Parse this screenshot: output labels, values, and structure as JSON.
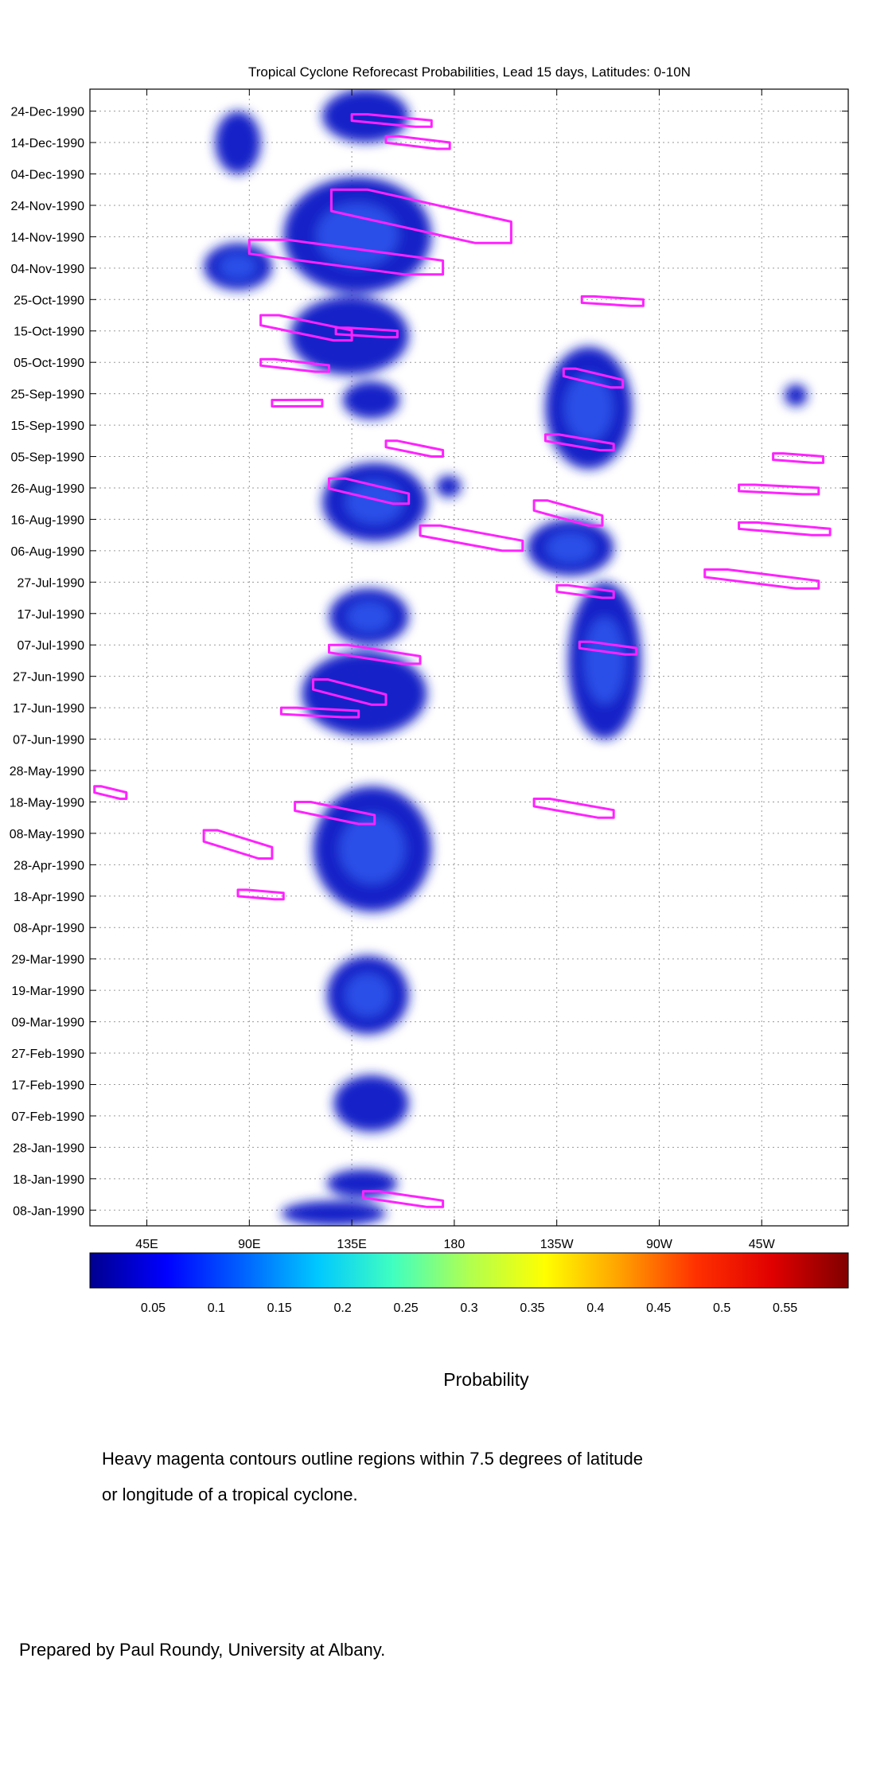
{
  "colors": {
    "field": "#1820c8",
    "field_light": "#2f5cf0",
    "contour": "#ff22ff",
    "grid": "#9a9a9a"
  },
  "colorbar": {
    "stops": [
      "#00008f",
      "#0000ff",
      "#0060ff",
      "#00c8ff",
      "#40ffc0",
      "#b0ff50",
      "#ffff00",
      "#ffa000",
      "#ff3000",
      "#e00000",
      "#800000"
    ],
    "ticks": [
      "0.05",
      "0.1",
      "0.15",
      "0.2",
      "0.25",
      "0.3",
      "0.35",
      "0.4",
      "0.45",
      "0.5",
      "0.55"
    ],
    "range": [
      0,
      0.6
    ],
    "label": "Probability"
  },
  "note_lines": [
    "Heavy magenta contours outline regions within 7.5 degrees of latitude",
    "or longitude of a tropical cyclone."
  ],
  "credit": "Prepared by Paul Roundy, University at Albany.",
  "chart_data": {
    "type": "heatmap",
    "title": "Tropical Cyclone Reforecast Probabilities, Lead 15 days, Latitudes: 0-10N",
    "xlabel": "",
    "ylabel": "",
    "x_ticks": [
      {
        "label": "45E",
        "lon": 45
      },
      {
        "label": "90E",
        "lon": 90
      },
      {
        "label": "135E",
        "lon": 135
      },
      {
        "label": "180",
        "lon": 180
      },
      {
        "label": "135W",
        "lon": 225
      },
      {
        "label": "90W",
        "lon": 270
      },
      {
        "label": "45W",
        "lon": 315
      }
    ],
    "xlim": [
      20,
      353
    ],
    "y_ticks": [
      "08-Jan-1990",
      "18-Jan-1990",
      "28-Jan-1990",
      "07-Feb-1990",
      "17-Feb-1990",
      "27-Feb-1990",
      "09-Mar-1990",
      "19-Mar-1990",
      "29-Mar-1990",
      "08-Apr-1990",
      "18-Apr-1990",
      "28-Apr-1990",
      "08-May-1990",
      "18-May-1990",
      "28-May-1990",
      "07-Jun-1990",
      "17-Jun-1990",
      "27-Jun-1990",
      "07-Jul-1990",
      "17-Jul-1990",
      "27-Jul-1990",
      "06-Aug-1990",
      "16-Aug-1990",
      "26-Aug-1990",
      "05-Sep-1990",
      "15-Sep-1990",
      "25-Sep-1990",
      "05-Oct-1990",
      "15-Oct-1990",
      "25-Oct-1990",
      "04-Nov-1990",
      "14-Nov-1990",
      "24-Nov-1990",
      "04-Dec-1990",
      "14-Dec-1990",
      "24-Dec-1990"
    ],
    "ylim": [
      "03-Jan-1990",
      "31-Dec-1990"
    ],
    "grid": true,
    "regions": [
      {
        "lon": [
          104,
          150
        ],
        "date": [
          "03-Jan-1990",
          "11-Jan-1990"
        ],
        "p": 0.05
      },
      {
        "lon": [
          124,
          155
        ],
        "date": [
          "12-Jan-1990",
          "21-Jan-1990"
        ],
        "p": 0.07
      },
      {
        "lon": [
          127,
          160
        ],
        "date": [
          "02-Feb-1990",
          "20-Feb-1990"
        ],
        "p": 0.09
      },
      {
        "lon": [
          124,
          160
        ],
        "date": [
          "05-Mar-1990",
          "30-Mar-1990"
        ],
        "p": 0.12
      },
      {
        "lon": [
          118,
          170
        ],
        "date": [
          "13-Apr-1990",
          "23-May-1990"
        ],
        "p": 0.13
      },
      {
        "lon": [
          113,
          168
        ],
        "date": [
          "08-Jun-1990",
          "05-Jul-1990"
        ],
        "p": 0.09
      },
      {
        "lon": [
          125,
          160
        ],
        "date": [
          "07-Jul-1990",
          "25-Jul-1990"
        ],
        "p": 0.1
      },
      {
        "lon": [
          122,
          168
        ],
        "date": [
          "09-Aug-1990",
          "03-Sep-1990"
        ],
        "p": 0.1
      },
      {
        "lon": [
          131,
          156
        ],
        "date": [
          "17-Sep-1990",
          "29-Sep-1990"
        ],
        "p": 0.06
      },
      {
        "lon": [
          108,
          160
        ],
        "date": [
          "01-Oct-1990",
          "26-Oct-1990"
        ],
        "p": 0.09
      },
      {
        "lon": [
          105,
          170
        ],
        "date": [
          "27-Oct-1990",
          "03-Dec-1990"
        ],
        "p": 0.13
      },
      {
        "lon": [
          122,
          160
        ],
        "date": [
          "14-Dec-1990",
          "31-Dec-1990"
        ],
        "p": 0.09
      },
      {
        "lon": [
          70,
          100
        ],
        "date": [
          "28-Oct-1990",
          "12-Nov-1990"
        ],
        "p": 0.12
      },
      {
        "lon": [
          75,
          95
        ],
        "date": [
          "04-Dec-1990",
          "24-Dec-1990"
        ],
        "p": 0.07
      },
      {
        "lon": [
          212,
          250
        ],
        "date": [
          "29-Jul-1990",
          "16-Aug-1990"
        ],
        "p": 0.12
      },
      {
        "lon": [
          230,
          262
        ],
        "date": [
          "07-Jun-1990",
          "27-Jul-1990"
        ],
        "p": 0.12
      },
      {
        "lon": [
          220,
          258
        ],
        "date": [
          "01-Sep-1990",
          "10-Oct-1990"
        ],
        "p": 0.1
      },
      {
        "lon": [
          172,
          183
        ],
        "date": [
          "23-Aug-1990",
          "30-Aug-1990"
        ],
        "p": 0.08
      },
      {
        "lon": [
          325,
          335
        ],
        "date": [
          "21-Sep-1990",
          "28-Sep-1990"
        ],
        "p": 0.06
      }
    ],
    "contours": [
      {
        "lon": [
          140,
          175
        ],
        "date": [
          "09-Jan-1990",
          "14-Jan-1990"
        ]
      },
      {
        "lon": [
          85,
          105
        ],
        "date": [
          "17-Apr-1990",
          "20-Apr-1990"
        ]
      },
      {
        "lon": [
          70,
          100
        ],
        "date": [
          "30-Apr-1990",
          "09-May-1990"
        ]
      },
      {
        "lon": [
          110,
          145
        ],
        "date": [
          "11-May-1990",
          "18-May-1990"
        ]
      },
      {
        "lon": [
          22,
          36
        ],
        "date": [
          "19-May-1990",
          "23-May-1990"
        ]
      },
      {
        "lon": [
          215,
          250
        ],
        "date": [
          "13-May-1990",
          "19-May-1990"
        ]
      },
      {
        "lon": [
          104,
          138
        ],
        "date": [
          "14-Jun-1990",
          "17-Jun-1990"
        ]
      },
      {
        "lon": [
          118,
          150
        ],
        "date": [
          "18-Jun-1990",
          "26-Jun-1990"
        ]
      },
      {
        "lon": [
          125,
          165
        ],
        "date": [
          "01-Jul-1990",
          "07-Jul-1990"
        ]
      },
      {
        "lon": [
          235,
          260
        ],
        "date": [
          "04-Jul-1990",
          "08-Jul-1990"
        ]
      },
      {
        "lon": [
          225,
          250
        ],
        "date": [
          "22-Jul-1990",
          "26-Jul-1990"
        ]
      },
      {
        "lon": [
          290,
          340
        ],
        "date": [
          "25-Jul-1990",
          "31-Jul-1990"
        ]
      },
      {
        "lon": [
          165,
          210
        ],
        "date": [
          "06-Aug-1990",
          "14-Aug-1990"
        ]
      },
      {
        "lon": [
          305,
          345
        ],
        "date": [
          "11-Aug-1990",
          "15-Aug-1990"
        ]
      },
      {
        "lon": [
          215,
          245
        ],
        "date": [
          "14-Aug-1990",
          "22-Aug-1990"
        ]
      },
      {
        "lon": [
          125,
          160
        ],
        "date": [
          "21-Aug-1990",
          "29-Aug-1990"
        ]
      },
      {
        "lon": [
          305,
          340
        ],
        "date": [
          "24-Aug-1990",
          "27-Aug-1990"
        ]
      },
      {
        "lon": [
          150,
          175
        ],
        "date": [
          "05-Sep-1990",
          "10-Sep-1990"
        ]
      },
      {
        "lon": [
          220,
          250
        ],
        "date": [
          "07-Sep-1990",
          "12-Sep-1990"
        ]
      },
      {
        "lon": [
          320,
          342
        ],
        "date": [
          "03-Sep-1990",
          "06-Sep-1990"
        ]
      },
      {
        "lon": [
          100,
          122
        ],
        "date": [
          "21-Sep-1990",
          "23-Sep-1990"
        ]
      },
      {
        "lon": [
          228,
          254
        ],
        "date": [
          "27-Sep-1990",
          "03-Oct-1990"
        ]
      },
      {
        "lon": [
          95,
          125
        ],
        "date": [
          "02-Oct-1990",
          "06-Oct-1990"
        ]
      },
      {
        "lon": [
          95,
          135
        ],
        "date": [
          "12-Oct-1990",
          "20-Oct-1990"
        ]
      },
      {
        "lon": [
          128,
          155
        ],
        "date": [
          "13-Oct-1990",
          "16-Oct-1990"
        ]
      },
      {
        "lon": [
          236,
          263
        ],
        "date": [
          "23-Oct-1990",
          "26-Oct-1990"
        ]
      },
      {
        "lon": [
          90,
          175
        ],
        "date": [
          "02-Nov-1990",
          "13-Nov-1990"
        ]
      },
      {
        "lon": [
          126,
          205
        ],
        "date": [
          "12-Nov-1990",
          "29-Nov-1990"
        ]
      },
      {
        "lon": [
          135,
          170
        ],
        "date": [
          "19-Dec-1990",
          "23-Dec-1990"
        ]
      },
      {
        "lon": [
          150,
          178
        ],
        "date": [
          "12-Dec-1990",
          "16-Dec-1990"
        ]
      }
    ]
  }
}
